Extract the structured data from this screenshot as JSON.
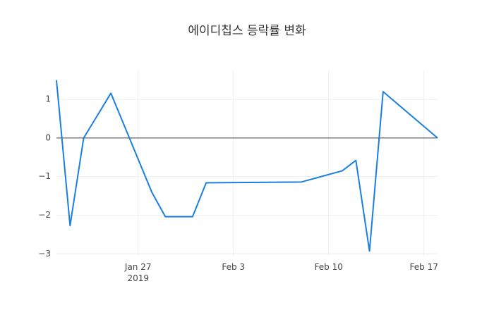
{
  "chart_data": {
    "type": "line",
    "title": "에이디칩스 등락률 변화",
    "x": [
      "2019-01-21",
      "2019-01-22",
      "2019-01-23",
      "2019-01-25",
      "2019-01-28",
      "2019-01-29",
      "2019-01-31",
      "2019-02-01",
      "2019-02-08",
      "2019-02-11",
      "2019-02-12",
      "2019-02-13",
      "2019-02-14",
      "2019-02-18"
    ],
    "series": [
      {
        "color": "#1a7fe0",
        "values": [
          1.5,
          -2.27,
          0,
          1.16,
          -1.4,
          -2.04,
          -2.04,
          -1.16,
          -1.14,
          -0.85,
          -0.58,
          -2.93,
          1.2,
          0
        ]
      }
    ],
    "xlim": [
      "2019-01-21",
      "2019-02-18"
    ],
    "xticks": [
      {
        "value": "2019-01-27",
        "label": "Jan 27",
        "sublabel": "2019"
      },
      {
        "value": "2019-02-03",
        "label": "Feb 3"
      },
      {
        "value": "2019-02-10",
        "label": "Feb 10"
      },
      {
        "value": "2019-02-17",
        "label": "Feb 17"
      }
    ],
    "ylim": [
      -3.05,
      1.75
    ],
    "yticks": [
      {
        "value": -3,
        "label": "−3"
      },
      {
        "value": -2,
        "label": "−2"
      },
      {
        "value": -1,
        "label": "−1"
      },
      0,
      1
    ],
    "grid": true,
    "zeroline": true
  }
}
